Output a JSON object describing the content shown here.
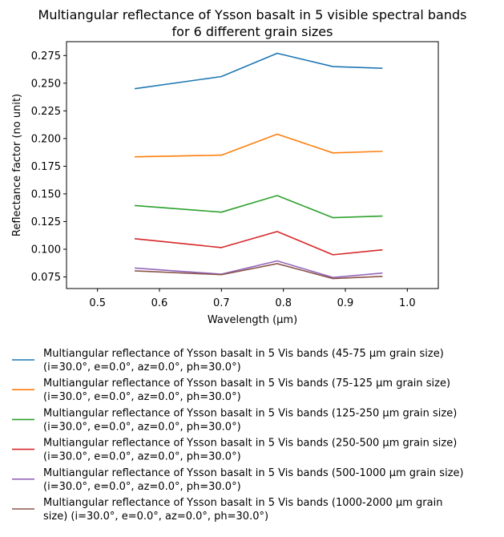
{
  "chart_data": {
    "type": "line",
    "title_line1": "Multiangular reflectance of Ysson basalt in 5 visible spectral bands",
    "title_line2": "for 6 different grain sizes",
    "xlabel": "Wavelength (μm)",
    "ylabel": "Reflectance factor (no unit)",
    "xlim": [
      0.45,
      1.05
    ],
    "ylim": [
      0.0645,
      0.2875
    ],
    "xticks": [
      "0.5",
      "0.6",
      "0.7",
      "0.8",
      "0.9",
      "1.0"
    ],
    "xtick_values": [
      0.5,
      0.6,
      0.7,
      0.8,
      0.9,
      1.0
    ],
    "yticks": [
      "0.075",
      "0.100",
      "0.125",
      "0.150",
      "0.175",
      "0.200",
      "0.225",
      "0.250",
      "0.275"
    ],
    "ytick_values": [
      0.075,
      0.1,
      0.125,
      0.15,
      0.175,
      0.2,
      0.225,
      0.25,
      0.275
    ],
    "grid": false,
    "legend_placement": "below",
    "x": [
      0.56,
      0.7,
      0.79,
      0.88,
      0.96
    ],
    "series": [
      {
        "name_line1": "Multiangular reflectance of Ysson basalt in 5 Vis bands (45-75 μm grain size)",
        "name_line2": "(i=30.0°, e=0.0°, az=0.0°, ph=30.0°)",
        "color": "#1f77b4",
        "values": [
          0.245,
          0.256,
          0.277,
          0.265,
          0.2635
        ]
      },
      {
        "name_line1": "Multiangular reflectance of Ysson basalt in 5 Vis bands (75-125 μm grain size)",
        "name_line2": "(i=30.0°, e=0.0°, az=0.0°, ph=30.0°)",
        "color": "#ff7f0e",
        "values": [
          0.1835,
          0.185,
          0.204,
          0.187,
          0.1885
        ]
      },
      {
        "name_line1": "Multiangular reflectance of Ysson basalt in 5 Vis bands (125-250 μm grain size)",
        "name_line2": "(i=30.0°, e=0.0°, az=0.0°, ph=30.0°)",
        "color": "#2ca02c",
        "values": [
          0.1395,
          0.1335,
          0.1485,
          0.1285,
          0.13
        ]
      },
      {
        "name_line1": "Multiangular reflectance of Ysson basalt in 5 Vis bands (250-500 μm grain size)",
        "name_line2": "(i=30.0°, e=0.0°, az=0.0°, ph=30.0°)",
        "color": "#d62728",
        "values": [
          0.1095,
          0.1015,
          0.116,
          0.095,
          0.0995
        ]
      },
      {
        "name_line1": "Multiangular reflectance of Ysson basalt in 5 Vis bands (500-1000 μm grain size)",
        "name_line2": "(i=30.0°, e=0.0°, az=0.0°, ph=30.0°)",
        "color": "#9467bd",
        "values": [
          0.083,
          0.0775,
          0.0895,
          0.0745,
          0.0785
        ]
      },
      {
        "name_line1": "Multiangular reflectance of Ysson basalt in 5 Vis bands (1000-2000 μm grain",
        "name_line2": "size) (i=30.0°, e=0.0°, az=0.0°, ph=30.0°)",
        "color": "#8c564b",
        "values": [
          0.0805,
          0.077,
          0.087,
          0.0735,
          0.0755
        ]
      }
    ]
  }
}
